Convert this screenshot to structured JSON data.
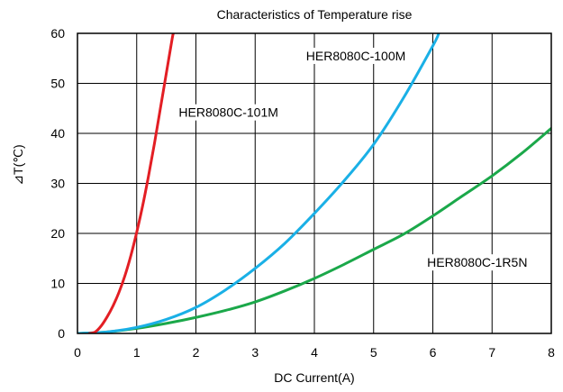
{
  "chart_data": {
    "type": "line",
    "title": "Characteristics of Temperature rise",
    "xlabel": "DC Current(A)",
    "ylabel": "⊿T(℃)",
    "xlim": [
      0,
      8
    ],
    "ylim": [
      0,
      60
    ],
    "xticks": [
      "0",
      "1",
      "2",
      "3",
      "4",
      "5",
      "6",
      "7",
      "8"
    ],
    "yticks": [
      "0",
      "10",
      "20",
      "30",
      "40",
      "50",
      "60"
    ],
    "grid": true,
    "series": [
      {
        "name": "HER8080C-101M",
        "color": "#e31e24",
        "x": [
          0.2,
          0.3,
          0.4,
          0.5,
          0.6,
          0.7,
          0.8,
          0.9,
          1.0,
          1.1,
          1.2,
          1.3,
          1.4,
          1.5,
          1.6,
          1.62
        ],
        "y": [
          0,
          0.3,
          1.5,
          3.3,
          5.5,
          8.2,
          11.5,
          15.5,
          20.2,
          25.5,
          31.5,
          38,
          45,
          52,
          59,
          60
        ]
      },
      {
        "name": "HER8080C-100M",
        "color": "#1ab0e6",
        "x": [
          0,
          0.5,
          1.0,
          1.5,
          2.0,
          2.5,
          3.0,
          3.5,
          4.0,
          4.5,
          5.0,
          5.5,
          6.0,
          6.1
        ],
        "y": [
          0,
          0.3,
          1.2,
          2.8,
          5.2,
          8.7,
          13.0,
          18.0,
          24.0,
          30.5,
          37.8,
          47.0,
          57.5,
          60
        ]
      },
      {
        "name": "HER8080C-1R5N",
        "color": "#1ba84a",
        "x": [
          0,
          0.5,
          1.0,
          1.5,
          2.0,
          2.5,
          3.0,
          3.5,
          4.0,
          4.5,
          5.0,
          5.5,
          6.0,
          6.5,
          7.0,
          7.5,
          8.0
        ],
        "y": [
          0,
          0.3,
          1.0,
          2.0,
          3.2,
          4.6,
          6.3,
          8.5,
          11.0,
          13.8,
          16.8,
          19.8,
          23.5,
          27.5,
          31.5,
          36.0,
          41.0
        ]
      }
    ],
    "annotations": [
      {
        "text": "HER8080C-100M",
        "x": 4.7,
        "y": 55.5,
        "series": 1
      },
      {
        "text": "HER8080C-101M",
        "x": 2.55,
        "y": 44.2,
        "series": 0
      },
      {
        "text": "HER8080C-1R5N",
        "x": 6.75,
        "y": 14.2,
        "series": 2
      }
    ]
  }
}
